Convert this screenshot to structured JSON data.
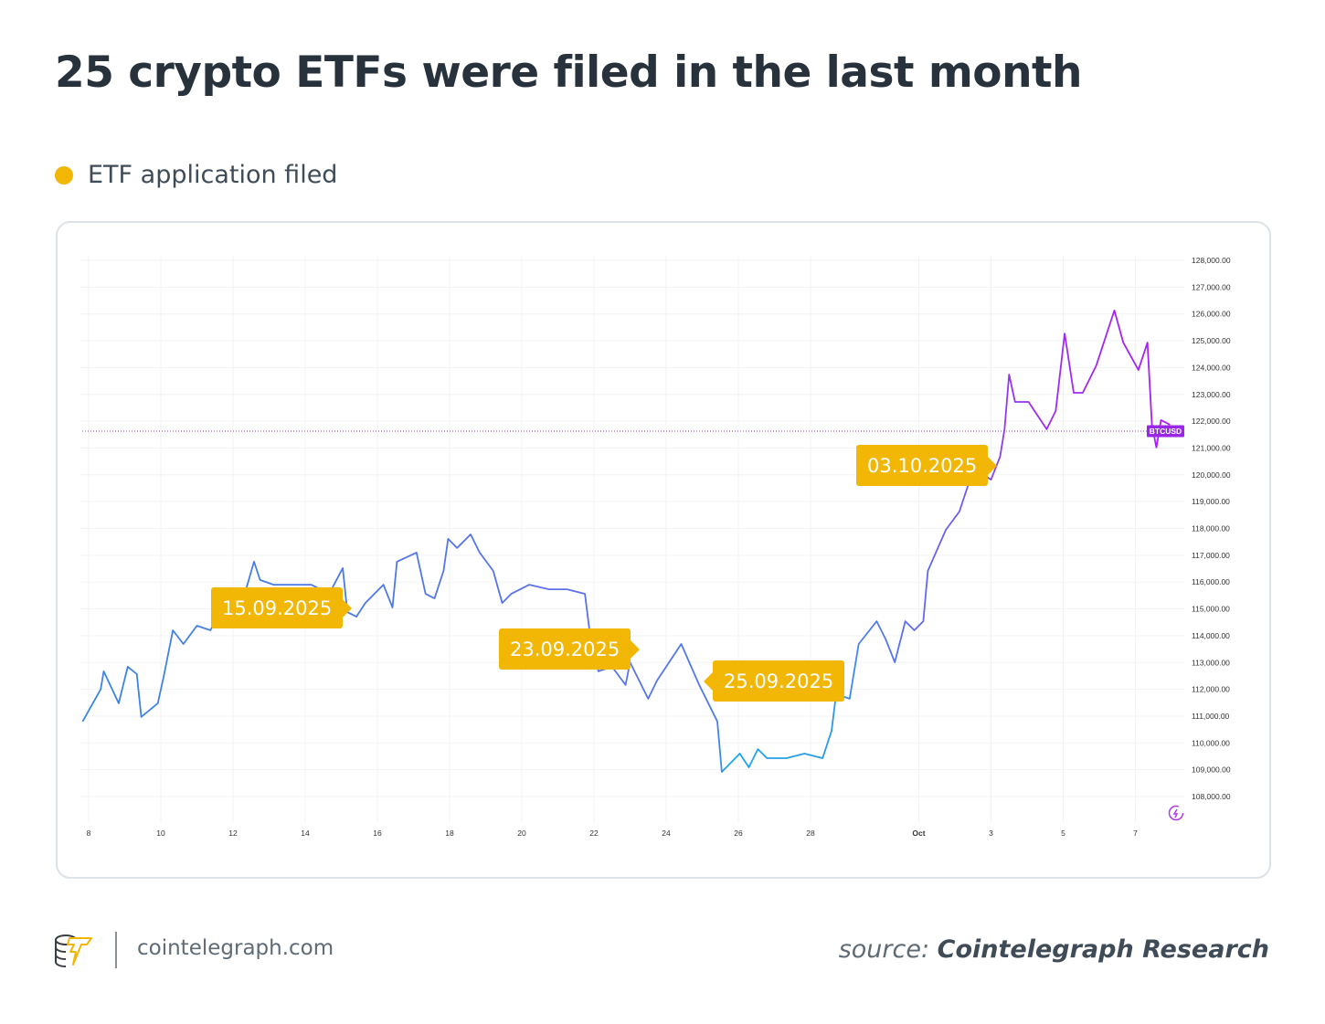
{
  "title": "25 crypto ETFs were filed in the last month",
  "legend": {
    "label": "ETF application filed",
    "color": "#f2b705"
  },
  "footer": {
    "site": "cointelegraph.com",
    "source_prefix": "source:",
    "source_name": "Cointelegraph Research"
  },
  "chart_data": {
    "type": "line",
    "title": "",
    "xlabel": "",
    "ylabel": "",
    "ylim": [
      108000,
      128000
    ],
    "grid": true,
    "symbol_label": "BTCUSD",
    "last_price": 121630,
    "x_ticks": [
      {
        "label": "8",
        "t": "2025-09-08T00:00"
      },
      {
        "label": "10",
        "t": "2025-09-10T00:00"
      },
      {
        "label": "12",
        "t": "2025-09-12T00:00"
      },
      {
        "label": "14",
        "t": "2025-09-14T00:00"
      },
      {
        "label": "16",
        "t": "2025-09-16T00:00"
      },
      {
        "label": "18",
        "t": "2025-09-18T00:00"
      },
      {
        "label": "20",
        "t": "2025-09-20T00:00"
      },
      {
        "label": "22",
        "t": "2025-09-22T00:00"
      },
      {
        "label": "24",
        "t": "2025-09-24T00:00"
      },
      {
        "label": "26",
        "t": "2025-09-26T00:00"
      },
      {
        "label": "28",
        "t": "2025-09-28T00:00"
      },
      {
        "label": "Oct",
        "t": "2025-10-01T00:00"
      },
      {
        "label": "3",
        "t": "2025-10-03T00:00"
      },
      {
        "label": "5",
        "t": "2025-10-05T00:00"
      },
      {
        "label": "7",
        "t": "2025-10-07T00:00"
      }
    ],
    "y_ticks": [
      "128,000.00",
      "127,000.00",
      "126,000.00",
      "125,000.00",
      "124,000.00",
      "123,000.00",
      "122,000.00",
      "121,000.00",
      "120,000.00",
      "119,000.00",
      "118,000.00",
      "117,000.00",
      "116,000.00",
      "115,000.00",
      "114,000.00",
      "113,000.00",
      "112,000.00",
      "111,000.00",
      "110,000.00",
      "109,000.00",
      "108,000.00"
    ],
    "series": [
      {
        "points": [
          [
            "2025-09-07T20:00",
            110800
          ],
          [
            "2025-09-08T08:00",
            112000
          ],
          [
            "2025-09-08T10:00",
            112670
          ],
          [
            "2025-09-08T20:00",
            111480
          ],
          [
            "2025-09-09T02:00",
            112840
          ],
          [
            "2025-09-09T08:00",
            112570
          ],
          [
            "2025-09-09T11:00",
            110970
          ],
          [
            "2025-09-09T22:00",
            111480
          ],
          [
            "2025-09-10T02:00",
            112500
          ],
          [
            "2025-09-10T08:00",
            114200
          ],
          [
            "2025-09-10T15:00",
            113690
          ],
          [
            "2025-09-11T00:00",
            114370
          ],
          [
            "2025-09-11T09:00",
            114200
          ],
          [
            "2025-09-11T18:00",
            115220
          ],
          [
            "2025-09-12T06:00",
            115220
          ],
          [
            "2025-09-12T14:00",
            116760
          ],
          [
            "2025-09-12T18:00",
            116080
          ],
          [
            "2025-09-13T03:00",
            115900
          ],
          [
            "2025-09-13T15:00",
            115900
          ],
          [
            "2025-09-14T04:00",
            115900
          ],
          [
            "2025-09-14T16:00",
            115560
          ],
          [
            "2025-09-15T01:00",
            116520
          ],
          [
            "2025-09-15T04:00",
            114880
          ],
          [
            "2025-09-15T10:00",
            114710
          ],
          [
            "2025-09-15T16:00",
            115220
          ],
          [
            "2025-09-15T22:00",
            115560
          ],
          [
            "2025-09-16T04:00",
            115900
          ],
          [
            "2025-09-16T10:00",
            115050
          ],
          [
            "2025-09-16T13:00",
            116760
          ],
          [
            "2025-09-17T02:00",
            117100
          ],
          [
            "2025-09-17T08:00",
            115560
          ],
          [
            "2025-09-17T14:00",
            115390
          ],
          [
            "2025-09-17T20:00",
            116420
          ],
          [
            "2025-09-17T23:00",
            117610
          ],
          [
            "2025-09-18T05:00",
            117270
          ],
          [
            "2025-09-18T14:00",
            117780
          ],
          [
            "2025-09-18T20:00",
            117100
          ],
          [
            "2025-09-19T05:00",
            116420
          ],
          [
            "2025-09-19T11:00",
            115220
          ],
          [
            "2025-09-19T17:00",
            115560
          ],
          [
            "2025-09-20T05:00",
            115900
          ],
          [
            "2025-09-20T18:00",
            115730
          ],
          [
            "2025-09-21T06:00",
            115730
          ],
          [
            "2025-09-21T18:00",
            115560
          ],
          [
            "2025-09-21T21:00",
            114200
          ],
          [
            "2025-09-22T03:00",
            112670
          ],
          [
            "2025-09-22T12:00",
            112840
          ],
          [
            "2025-09-22T21:00",
            112160
          ],
          [
            "2025-09-23T00:00",
            113010
          ],
          [
            "2025-09-23T12:00",
            111650
          ],
          [
            "2025-09-23T18:00",
            112330
          ],
          [
            "2025-09-24T10:00",
            113690
          ],
          [
            "2025-09-24T22:00",
            112160
          ],
          [
            "2025-09-25T10:00",
            110800
          ],
          [
            "2025-09-25T13:00",
            108920
          ],
          [
            "2025-09-26T01:00",
            109600
          ],
          [
            "2025-09-26T07:00",
            109090
          ],
          [
            "2025-09-26T13:00",
            109770
          ],
          [
            "2025-09-26T19:00",
            109430
          ],
          [
            "2025-09-27T08:00",
            109430
          ],
          [
            "2025-09-27T20:00",
            109600
          ],
          [
            "2025-09-28T08:00",
            109430
          ],
          [
            "2025-09-28T14:00",
            110450
          ],
          [
            "2025-09-28T17:00",
            111820
          ],
          [
            "2025-09-29T02:00",
            111650
          ],
          [
            "2025-09-29T08:00",
            113690
          ],
          [
            "2025-09-29T20:00",
            114540
          ],
          [
            "2025-09-30T02:00",
            113860
          ],
          [
            "2025-09-30T08:00",
            113010
          ],
          [
            "2025-09-30T15:00",
            114540
          ],
          [
            "2025-09-30T21:00",
            114200
          ],
          [
            "2025-10-01T03:00",
            114540
          ],
          [
            "2025-10-01T06:00",
            116420
          ],
          [
            "2025-10-01T18:00",
            117950
          ],
          [
            "2025-10-02T03:00",
            118630
          ],
          [
            "2025-10-02T09:00",
            119650
          ],
          [
            "2025-10-02T15:00",
            120160
          ],
          [
            "2025-10-03T00:00",
            119820
          ],
          [
            "2025-10-03T06:00",
            120670
          ],
          [
            "2025-10-03T09:00",
            121700
          ],
          [
            "2025-10-03T12:00",
            123740
          ],
          [
            "2025-10-03T16:00",
            122720
          ],
          [
            "2025-10-04T01:00",
            122720
          ],
          [
            "2025-10-04T13:00",
            121700
          ],
          [
            "2025-10-04T19:00",
            122380
          ],
          [
            "2025-10-05T01:00",
            125270
          ],
          [
            "2025-10-05T07:00",
            123060
          ],
          [
            "2025-10-05T13:00",
            123060
          ],
          [
            "2025-10-05T22:00",
            124080
          ],
          [
            "2025-10-06T10:00",
            126130
          ],
          [
            "2025-10-06T16:00",
            124930
          ],
          [
            "2025-10-07T02:00",
            123910
          ],
          [
            "2025-10-07T08:00",
            124930
          ],
          [
            "2025-10-07T11:00",
            121870
          ],
          [
            "2025-10-07T14:00",
            121020
          ],
          [
            "2025-10-07T17:00",
            122040
          ],
          [
            "2025-10-07T23:00",
            121870
          ]
        ]
      }
    ],
    "annotations": [
      {
        "label": "15.09.2025"
      },
      {
        "label": "23.09.2025"
      },
      {
        "label": "25.09.2025"
      },
      {
        "label": "03.10.2025"
      }
    ]
  }
}
